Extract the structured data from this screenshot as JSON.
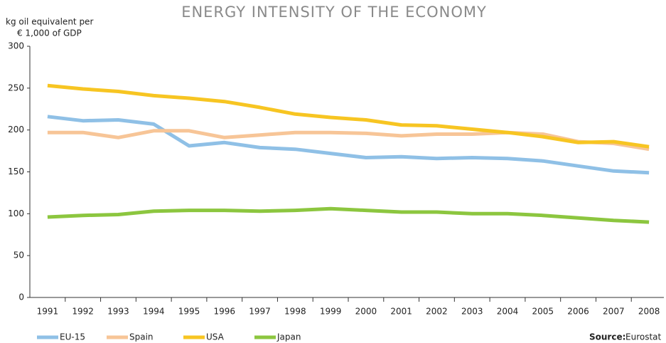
{
  "chart_data": {
    "type": "line",
    "title": "ENERGY INTENSITY OF THE ECONOMY",
    "y_label": [
      "kg oil equivalent per",
      "€ 1,000 of GDP"
    ],
    "categories": [
      "1991",
      "1992",
      "1993",
      "1994",
      "1995",
      "1996",
      "1997",
      "1998",
      "1999",
      "2000",
      "2001",
      "2002",
      "2003",
      "2004",
      "2005",
      "2006",
      "2007",
      "2008"
    ],
    "series": [
      {
        "name": "EU-15",
        "color": "#8fc0e6",
        "values": [
          216,
          211,
          212,
          207,
          181,
          185,
          179,
          177,
          172,
          167,
          168,
          166,
          167,
          166,
          163,
          157,
          151,
          149
        ]
      },
      {
        "name": "Spain",
        "color": "#f7c597",
        "values": [
          197,
          197,
          191,
          199,
          199,
          191,
          194,
          197,
          197,
          196,
          193,
          195,
          195,
          197,
          195,
          186,
          184,
          177
        ]
      },
      {
        "name": "USA",
        "color": "#f7c522",
        "values": [
          253,
          249,
          246,
          241,
          238,
          234,
          227,
          219,
          215,
          212,
          206,
          205,
          201,
          197,
          192,
          185,
          186,
          180
        ]
      },
      {
        "name": "Japan",
        "color": "#8cc63f",
        "values": [
          96,
          98,
          99,
          103,
          104,
          104,
          103,
          104,
          106,
          104,
          102,
          102,
          100,
          100,
          98,
          95,
          92,
          90
        ]
      }
    ],
    "ylim": [
      0,
      300
    ],
    "yticks": [
      0,
      50,
      100,
      150,
      200,
      250,
      300
    ],
    "grid": false,
    "source_label": "Source:",
    "source": "Eurostat"
  }
}
